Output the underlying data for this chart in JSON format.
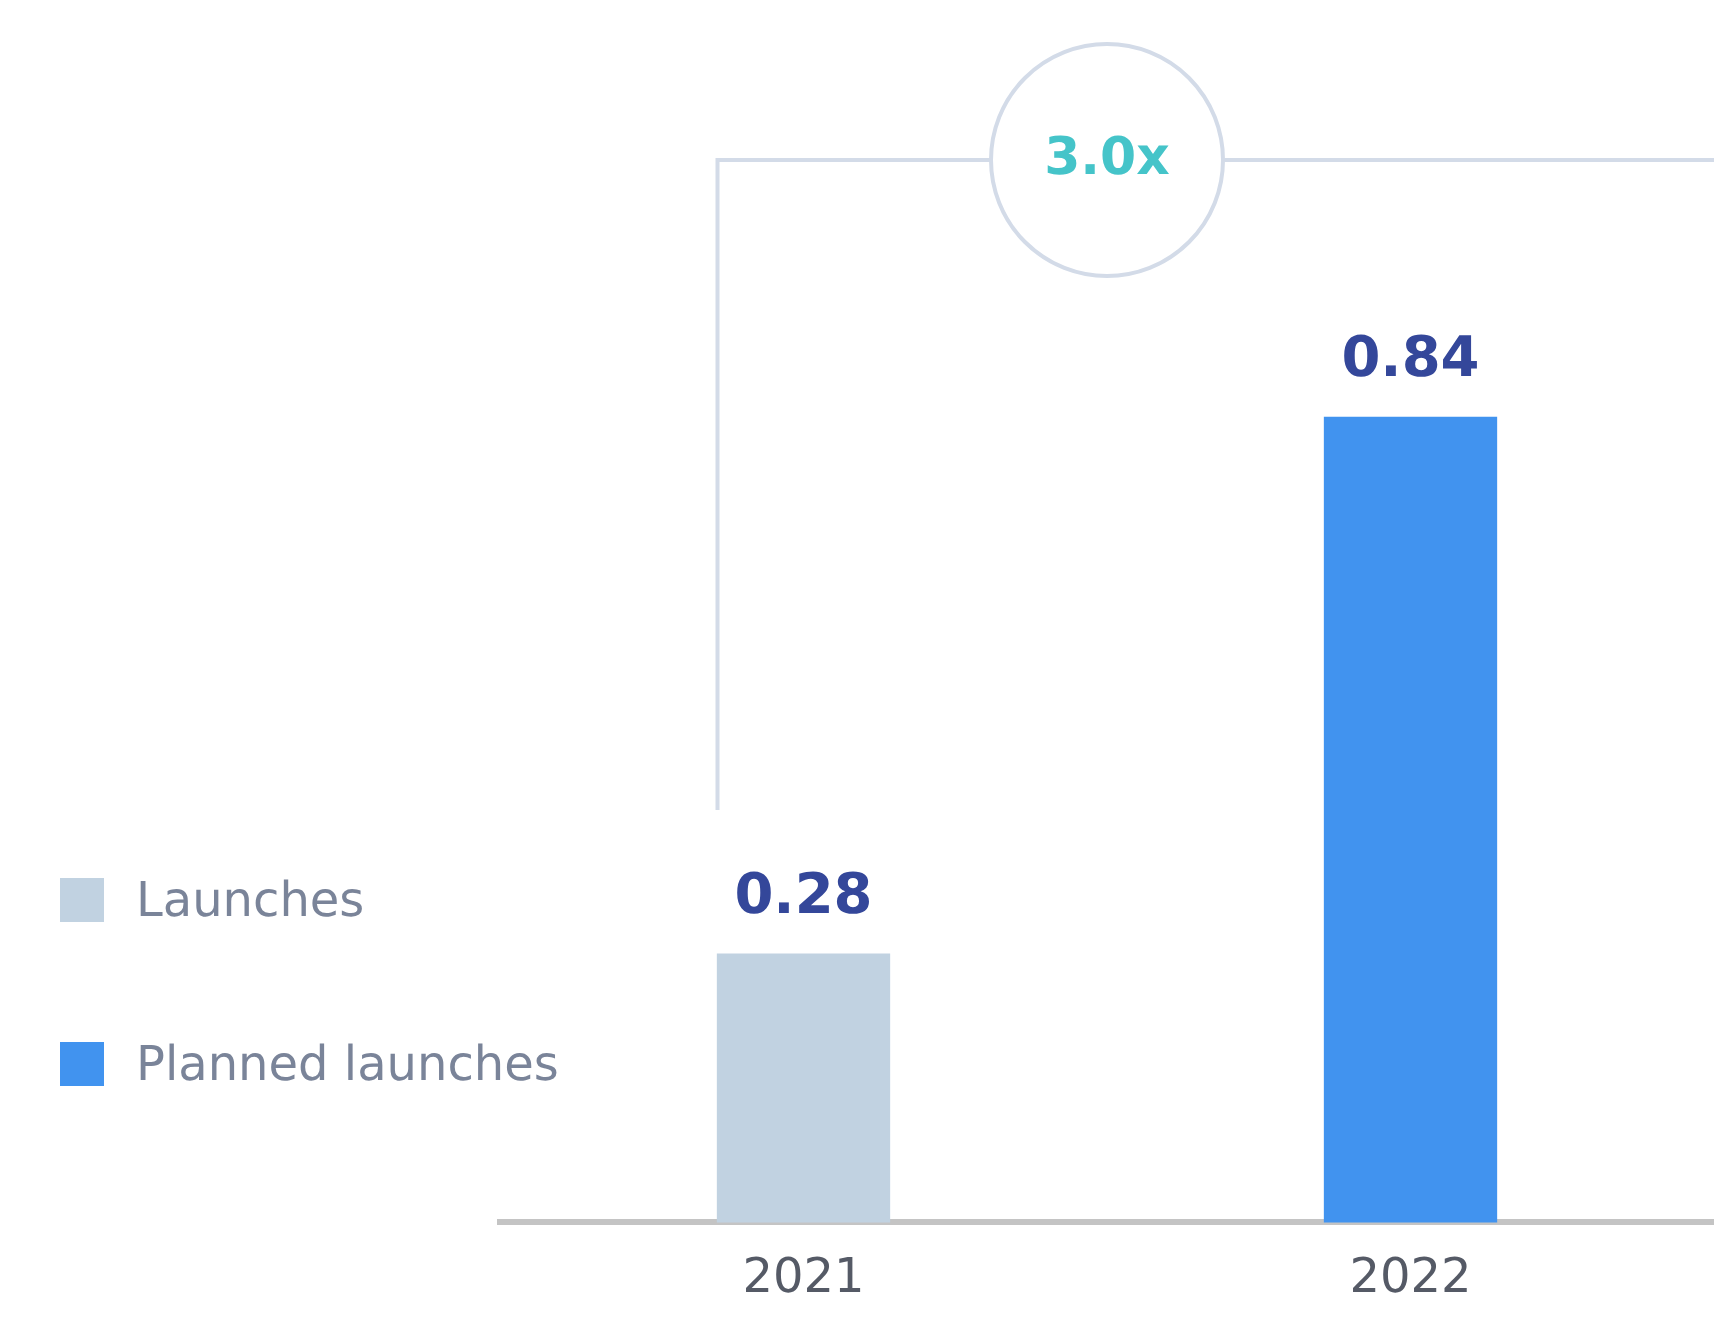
{
  "chart_data": {
    "type": "bar",
    "categories": [
      "2021",
      "2022"
    ],
    "series": [
      {
        "name": "Launches",
        "color": "#c1d2e1",
        "values": [
          0.28,
          null
        ]
      },
      {
        "name": "Planned launches",
        "color": "#4193ef",
        "values": [
          null,
          0.84
        ]
      }
    ],
    "data_labels": true,
    "legend": "bottom left",
    "grid": false,
    "tick_labels": "x",
    "annotations": [
      "3.0x"
    ]
  }
}
